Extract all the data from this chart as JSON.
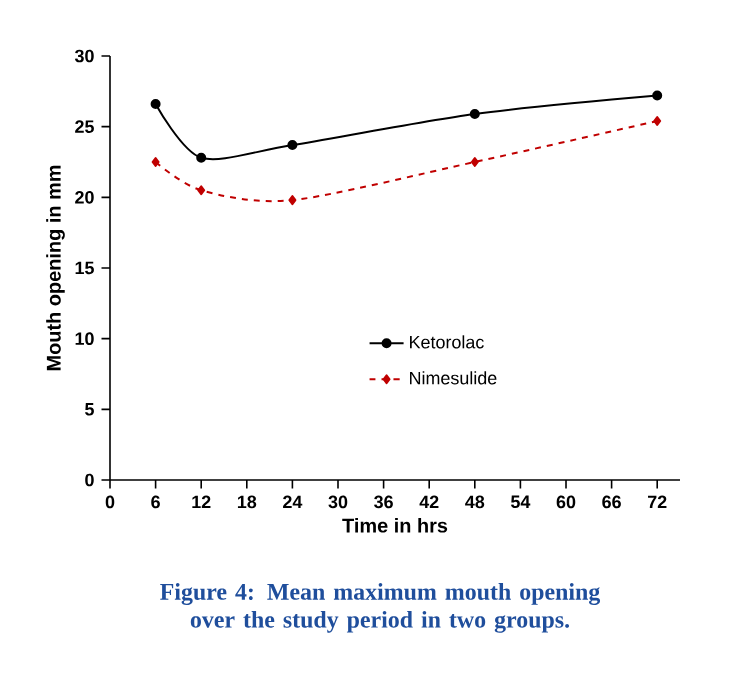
{
  "chart_data": {
    "type": "line",
    "xlabel": "Time in hrs",
    "ylabel": "Mouth opening in mm",
    "x": [
      6,
      12,
      24,
      48,
      72
    ],
    "series": [
      {
        "name": "Ketorolac",
        "color": "#000000",
        "marker": "circle",
        "line_style": "solid",
        "values": [
          26.6,
          22.8,
          23.7,
          25.9,
          27.2
        ]
      },
      {
        "name": "Nimesulide",
        "color": "#c00000",
        "marker": "diamond",
        "line_style": "dashed",
        "values": [
          22.5,
          20.5,
          19.8,
          22.5,
          25.4
        ]
      }
    ],
    "xlim": [
      0,
      75
    ],
    "xticks": [
      0,
      6,
      12,
      18,
      24,
      30,
      36,
      42,
      48,
      54,
      60,
      66,
      72
    ],
    "ylim": [
      0,
      30
    ],
    "yticks": [
      0,
      5,
      10,
      15,
      20,
      25,
      30
    ],
    "grid": false,
    "legend": "center",
    "annotations": [
      "Figure 4: Mean maximum mouth opening over the study period in two groups."
    ]
  }
}
